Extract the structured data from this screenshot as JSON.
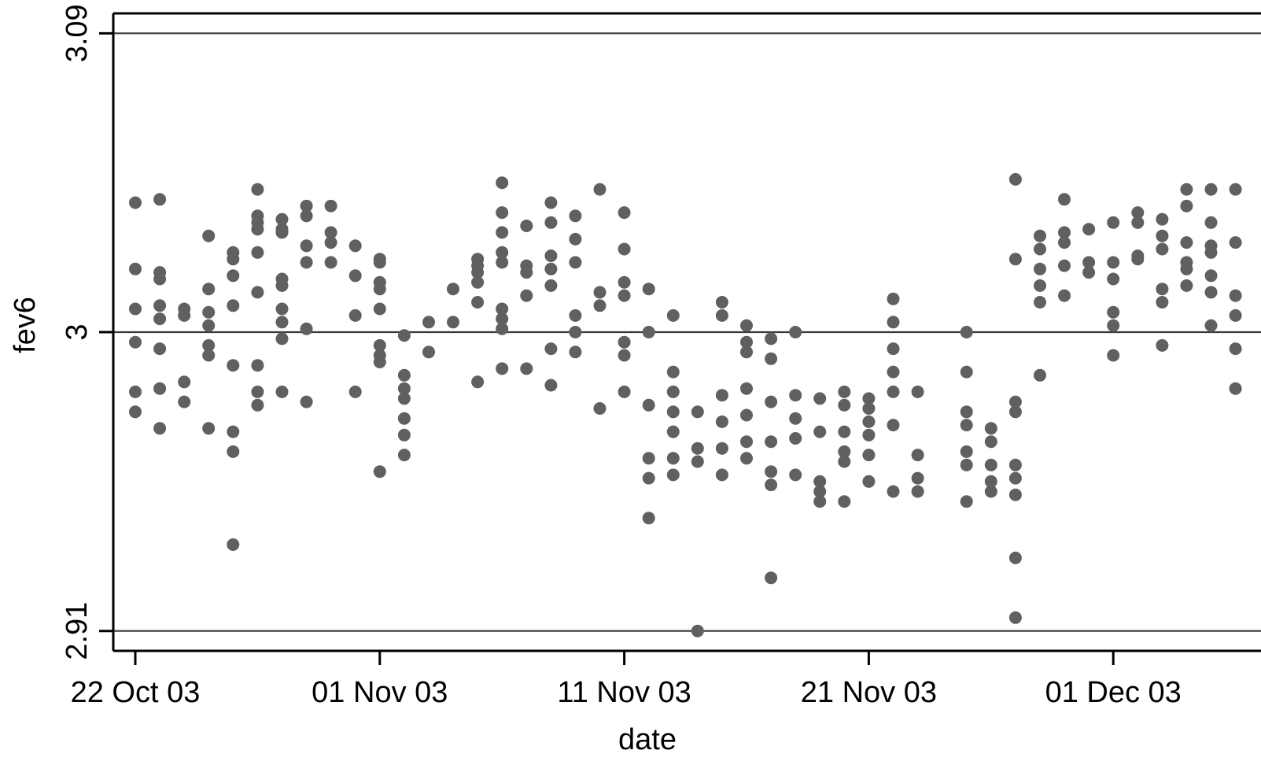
{
  "chart_data": {
    "type": "scatter",
    "xlabel": "date",
    "ylabel": "fev6",
    "x_tick_labels": [
      "22 Oct 03",
      "01 Nov 03",
      "11 Nov 03",
      "21 Nov 03",
      "01 Dec 03"
    ],
    "x_ticks": [
      "2003-10-22",
      "2003-11-01",
      "2003-11-11",
      "2003-11-21",
      "2003-12-01"
    ],
    "xlim": [
      "2003-10-21",
      "2003-12-06"
    ],
    "y_tick_labels": [
      "2.91",
      "3",
      "3.09"
    ],
    "y_ticks": [
      2.91,
      3.0,
      3.09
    ],
    "ylim": [
      2.904,
      3.096
    ],
    "reference_lines_y": [
      2.91,
      3.0,
      3.09
    ],
    "grid": false,
    "legend": "none",
    "marker_color": "#606060",
    "series": [
      {
        "points": [
          [
            "2003-10-22",
            3.039
          ],
          [
            "2003-10-22",
            3.019
          ],
          [
            "2003-10-22",
            3.007
          ],
          [
            "2003-10-22",
            2.997
          ],
          [
            "2003-10-22",
            2.982
          ],
          [
            "2003-10-22",
            2.976
          ],
          [
            "2003-10-23",
            3.04
          ],
          [
            "2003-10-23",
            3.018
          ],
          [
            "2003-10-23",
            3.016
          ],
          [
            "2003-10-23",
            3.008
          ],
          [
            "2003-10-23",
            3.004
          ],
          [
            "2003-10-23",
            2.995
          ],
          [
            "2003-10-23",
            2.983
          ],
          [
            "2003-10-23",
            2.971
          ],
          [
            "2003-10-24",
            3.007
          ],
          [
            "2003-10-24",
            3.005
          ],
          [
            "2003-10-24",
            2.985
          ],
          [
            "2003-10-24",
            2.979
          ],
          [
            "2003-10-25",
            3.029
          ],
          [
            "2003-10-25",
            3.013
          ],
          [
            "2003-10-25",
            3.006
          ],
          [
            "2003-10-25",
            3.002
          ],
          [
            "2003-10-25",
            2.996
          ],
          [
            "2003-10-25",
            2.993
          ],
          [
            "2003-10-25",
            2.971
          ],
          [
            "2003-10-26",
            3.024
          ],
          [
            "2003-10-26",
            3.022
          ],
          [
            "2003-10-26",
            3.017
          ],
          [
            "2003-10-26",
            3.008
          ],
          [
            "2003-10-26",
            2.99
          ],
          [
            "2003-10-26",
            2.97
          ],
          [
            "2003-10-26",
            2.964
          ],
          [
            "2003-10-26",
            2.936
          ],
          [
            "2003-10-27",
            3.043
          ],
          [
            "2003-10-27",
            3.035
          ],
          [
            "2003-10-27",
            3.033
          ],
          [
            "2003-10-27",
            3.031
          ],
          [
            "2003-10-27",
            3.024
          ],
          [
            "2003-10-27",
            3.012
          ],
          [
            "2003-10-27",
            2.99
          ],
          [
            "2003-10-27",
            2.982
          ],
          [
            "2003-10-27",
            2.978
          ],
          [
            "2003-10-28",
            3.034
          ],
          [
            "2003-10-28",
            3.031
          ],
          [
            "2003-10-28",
            3.03
          ],
          [
            "2003-10-28",
            3.016
          ],
          [
            "2003-10-28",
            3.014
          ],
          [
            "2003-10-28",
            3.007
          ],
          [
            "2003-10-28",
            3.003
          ],
          [
            "2003-10-28",
            2.998
          ],
          [
            "2003-10-28",
            2.982
          ],
          [
            "2003-10-29",
            3.038
          ],
          [
            "2003-10-29",
            3.035
          ],
          [
            "2003-10-29",
            3.026
          ],
          [
            "2003-10-29",
            3.021
          ],
          [
            "2003-10-29",
            3.001
          ],
          [
            "2003-10-29",
            2.979
          ],
          [
            "2003-10-30",
            3.038
          ],
          [
            "2003-10-30",
            3.03
          ],
          [
            "2003-10-30",
            3.027
          ],
          [
            "2003-10-30",
            3.021
          ],
          [
            "2003-10-31",
            3.026
          ],
          [
            "2003-10-31",
            3.017
          ],
          [
            "2003-10-31",
            3.005
          ],
          [
            "2003-10-31",
            2.982
          ],
          [
            "2003-11-01",
            3.022
          ],
          [
            "2003-11-01",
            3.021
          ],
          [
            "2003-11-01",
            3.015
          ],
          [
            "2003-11-01",
            3.013
          ],
          [
            "2003-11-01",
            3.007
          ],
          [
            "2003-11-01",
            2.996
          ],
          [
            "2003-11-01",
            2.993
          ],
          [
            "2003-11-01",
            2.991
          ],
          [
            "2003-11-01",
            2.958
          ],
          [
            "2003-11-02",
            2.999
          ],
          [
            "2003-11-02",
            2.987
          ],
          [
            "2003-11-02",
            2.983
          ],
          [
            "2003-11-02",
            2.98
          ],
          [
            "2003-11-02",
            2.974
          ],
          [
            "2003-11-02",
            2.969
          ],
          [
            "2003-11-02",
            2.963
          ],
          [
            "2003-11-03",
            3.003
          ],
          [
            "2003-11-03",
            2.994
          ],
          [
            "2003-11-04",
            3.013
          ],
          [
            "2003-11-04",
            3.003
          ],
          [
            "2003-11-05",
            3.022
          ],
          [
            "2003-11-05",
            3.02
          ],
          [
            "2003-11-05",
            3.018
          ],
          [
            "2003-11-05",
            3.015
          ],
          [
            "2003-11-05",
            3.009
          ],
          [
            "2003-11-05",
            2.985
          ],
          [
            "2003-11-06",
            3.045
          ],
          [
            "2003-11-06",
            3.036
          ],
          [
            "2003-11-06",
            3.03
          ],
          [
            "2003-11-06",
            3.024
          ],
          [
            "2003-11-06",
            3.021
          ],
          [
            "2003-11-06",
            3.007
          ],
          [
            "2003-11-06",
            3.004
          ],
          [
            "2003-11-06",
            3.001
          ],
          [
            "2003-11-06",
            2.989
          ],
          [
            "2003-11-07",
            3.032
          ],
          [
            "2003-11-07",
            3.02
          ],
          [
            "2003-11-07",
            3.018
          ],
          [
            "2003-11-07",
            3.011
          ],
          [
            "2003-11-07",
            2.989
          ],
          [
            "2003-11-08",
            3.039
          ],
          [
            "2003-11-08",
            3.033
          ],
          [
            "2003-11-08",
            3.023
          ],
          [
            "2003-11-08",
            3.019
          ],
          [
            "2003-11-08",
            3.014
          ],
          [
            "2003-11-08",
            2.995
          ],
          [
            "2003-11-08",
            2.984
          ],
          [
            "2003-11-09",
            3.035
          ],
          [
            "2003-11-09",
            3.028
          ],
          [
            "2003-11-09",
            3.021
          ],
          [
            "2003-11-09",
            3.005
          ],
          [
            "2003-11-09",
            3.0
          ],
          [
            "2003-11-09",
            2.994
          ],
          [
            "2003-11-10",
            3.043
          ],
          [
            "2003-11-10",
            3.012
          ],
          [
            "2003-11-10",
            3.008
          ],
          [
            "2003-11-10",
            2.977
          ],
          [
            "2003-11-11",
            3.036
          ],
          [
            "2003-11-11",
            3.025
          ],
          [
            "2003-11-11",
            3.015
          ],
          [
            "2003-11-11",
            3.011
          ],
          [
            "2003-11-11",
            2.997
          ],
          [
            "2003-11-11",
            2.993
          ],
          [
            "2003-11-11",
            2.982
          ],
          [
            "2003-11-12",
            3.013
          ],
          [
            "2003-11-12",
            3.0
          ],
          [
            "2003-11-12",
            2.978
          ],
          [
            "2003-11-12",
            2.962
          ],
          [
            "2003-11-12",
            2.956
          ],
          [
            "2003-11-12",
            2.944
          ],
          [
            "2003-11-13",
            3.005
          ],
          [
            "2003-11-13",
            2.988
          ],
          [
            "2003-11-13",
            2.982
          ],
          [
            "2003-11-13",
            2.976
          ],
          [
            "2003-11-13",
            2.97
          ],
          [
            "2003-11-13",
            2.962
          ],
          [
            "2003-11-13",
            2.957
          ],
          [
            "2003-11-14",
            2.976
          ],
          [
            "2003-11-14",
            2.965
          ],
          [
            "2003-11-14",
            2.961
          ],
          [
            "2003-11-14",
            2.91
          ],
          [
            "2003-11-15",
            3.009
          ],
          [
            "2003-11-15",
            3.005
          ],
          [
            "2003-11-15",
            2.981
          ],
          [
            "2003-11-15",
            2.973
          ],
          [
            "2003-11-15",
            2.965
          ],
          [
            "2003-11-15",
            2.957
          ],
          [
            "2003-11-16",
            3.002
          ],
          [
            "2003-11-16",
            2.997
          ],
          [
            "2003-11-16",
            2.994
          ],
          [
            "2003-11-16",
            2.983
          ],
          [
            "2003-11-16",
            2.975
          ],
          [
            "2003-11-16",
            2.967
          ],
          [
            "2003-11-16",
            2.962
          ],
          [
            "2003-11-17",
            2.998
          ],
          [
            "2003-11-17",
            2.992
          ],
          [
            "2003-11-17",
            2.979
          ],
          [
            "2003-11-17",
            2.967
          ],
          [
            "2003-11-17",
            2.958
          ],
          [
            "2003-11-17",
            2.954
          ],
          [
            "2003-11-17",
            2.926
          ],
          [
            "2003-11-18",
            3.0
          ],
          [
            "2003-11-18",
            2.981
          ],
          [
            "2003-11-18",
            2.974
          ],
          [
            "2003-11-18",
            2.968
          ],
          [
            "2003-11-18",
            2.957
          ],
          [
            "2003-11-19",
            2.98
          ],
          [
            "2003-11-19",
            2.97
          ],
          [
            "2003-11-19",
            2.955
          ],
          [
            "2003-11-19",
            2.952
          ],
          [
            "2003-11-19",
            2.949
          ],
          [
            "2003-11-20",
            2.982
          ],
          [
            "2003-11-20",
            2.978
          ],
          [
            "2003-11-20",
            2.97
          ],
          [
            "2003-11-20",
            2.964
          ],
          [
            "2003-11-20",
            2.961
          ],
          [
            "2003-11-20",
            2.949
          ],
          [
            "2003-11-21",
            2.98
          ],
          [
            "2003-11-21",
            2.977
          ],
          [
            "2003-11-21",
            2.973
          ],
          [
            "2003-11-21",
            2.969
          ],
          [
            "2003-11-21",
            2.963
          ],
          [
            "2003-11-21",
            2.955
          ],
          [
            "2003-11-22",
            3.01
          ],
          [
            "2003-11-22",
            3.003
          ],
          [
            "2003-11-22",
            2.995
          ],
          [
            "2003-11-22",
            2.988
          ],
          [
            "2003-11-22",
            2.982
          ],
          [
            "2003-11-22",
            2.972
          ],
          [
            "2003-11-22",
            2.952
          ],
          [
            "2003-11-23",
            2.982
          ],
          [
            "2003-11-23",
            2.963
          ],
          [
            "2003-11-23",
            2.956
          ],
          [
            "2003-11-23",
            2.952
          ],
          [
            "2003-11-25",
            3.0
          ],
          [
            "2003-11-25",
            2.988
          ],
          [
            "2003-11-25",
            2.976
          ],
          [
            "2003-11-25",
            2.972
          ],
          [
            "2003-11-25",
            2.964
          ],
          [
            "2003-11-25",
            2.96
          ],
          [
            "2003-11-25",
            2.949
          ],
          [
            "2003-11-26",
            2.971
          ],
          [
            "2003-11-26",
            2.967
          ],
          [
            "2003-11-26",
            2.96
          ],
          [
            "2003-11-26",
            2.955
          ],
          [
            "2003-11-26",
            2.952
          ],
          [
            "2003-11-27",
            3.046
          ],
          [
            "2003-11-27",
            3.022
          ],
          [
            "2003-11-27",
            2.979
          ],
          [
            "2003-11-27",
            2.976
          ],
          [
            "2003-11-27",
            2.96
          ],
          [
            "2003-11-27",
            2.956
          ],
          [
            "2003-11-27",
            2.951
          ],
          [
            "2003-11-27",
            2.932
          ],
          [
            "2003-11-27",
            2.914
          ],
          [
            "2003-11-28",
            3.029
          ],
          [
            "2003-11-28",
            3.025
          ],
          [
            "2003-11-28",
            3.019
          ],
          [
            "2003-11-28",
            3.014
          ],
          [
            "2003-11-28",
            3.009
          ],
          [
            "2003-11-28",
            2.987
          ],
          [
            "2003-11-29",
            3.04
          ],
          [
            "2003-11-29",
            3.03
          ],
          [
            "2003-11-29",
            3.027
          ],
          [
            "2003-11-29",
            3.02
          ],
          [
            "2003-11-29",
            3.011
          ],
          [
            "2003-11-30",
            3.031
          ],
          [
            "2003-11-30",
            3.018
          ],
          [
            "2003-11-30",
            3.021
          ],
          [
            "2003-12-01",
            3.033
          ],
          [
            "2003-12-01",
            3.021
          ],
          [
            "2003-12-01",
            3.016
          ],
          [
            "2003-12-01",
            3.006
          ],
          [
            "2003-12-01",
            3.002
          ],
          [
            "2003-12-01",
            2.993
          ],
          [
            "2003-12-02",
            3.036
          ],
          [
            "2003-12-02",
            3.033
          ],
          [
            "2003-12-02",
            3.023
          ],
          [
            "2003-12-02",
            3.022
          ],
          [
            "2003-12-03",
            3.034
          ],
          [
            "2003-12-03",
            3.029
          ],
          [
            "2003-12-03",
            3.025
          ],
          [
            "2003-12-03",
            3.013
          ],
          [
            "2003-12-03",
            3.009
          ],
          [
            "2003-12-03",
            2.996
          ],
          [
            "2003-12-04",
            3.043
          ],
          [
            "2003-12-04",
            3.038
          ],
          [
            "2003-12-04",
            3.027
          ],
          [
            "2003-12-04",
            3.021
          ],
          [
            "2003-12-04",
            3.019
          ],
          [
            "2003-12-04",
            3.014
          ],
          [
            "2003-12-05",
            3.043
          ],
          [
            "2003-12-05",
            3.033
          ],
          [
            "2003-12-05",
            3.026
          ],
          [
            "2003-12-05",
            3.024
          ],
          [
            "2003-12-05",
            3.017
          ],
          [
            "2003-12-05",
            3.012
          ],
          [
            "2003-12-05",
            3.002
          ],
          [
            "2003-12-06",
            3.043
          ],
          [
            "2003-12-06",
            3.027
          ],
          [
            "2003-12-06",
            3.011
          ],
          [
            "2003-12-06",
            3.005
          ],
          [
            "2003-12-06",
            2.995
          ],
          [
            "2003-12-06",
            2.983
          ]
        ]
      }
    ]
  }
}
